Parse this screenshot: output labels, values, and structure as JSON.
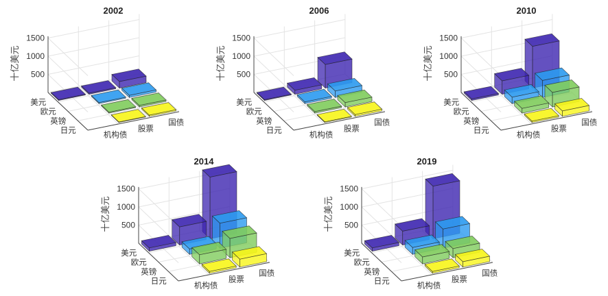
{
  "chart_data": [
    {
      "type": "bar3d",
      "title": "2002",
      "zlabel": "十亿美元",
      "zticks": [
        500,
        1000,
        1500
      ],
      "rows": [
        "美元",
        "欧元",
        "英镑",
        "日元"
      ],
      "columns": [
        "机构债",
        "股票",
        "国债"
      ],
      "values": [
        [
          20,
          30,
          180
        ],
        [
          0,
          30,
          60
        ],
        [
          0,
          25,
          40
        ],
        [
          0,
          15,
          35
        ]
      ]
    },
    {
      "type": "bar3d",
      "title": "2006",
      "zlabel": "十亿美元",
      "zticks": [
        500,
        1000,
        1500
      ],
      "rows": [
        "美元",
        "欧元",
        "英镑",
        "日元"
      ],
      "columns": [
        "机构债",
        "股票",
        "国债"
      ],
      "values": [
        [
          20,
          110,
          650
        ],
        [
          0,
          50,
          180
        ],
        [
          0,
          40,
          120
        ],
        [
          0,
          20,
          50
        ]
      ]
    },
    {
      "type": "bar3d",
      "title": "2010",
      "zlabel": "十亿美元",
      "zticks": [
        500,
        1000,
        1500
      ],
      "rows": [
        "美元",
        "欧元",
        "英镑",
        "日元"
      ],
      "columns": [
        "机构债",
        "股票",
        "国债"
      ],
      "values": [
        [
          40,
          370,
          1150
        ],
        [
          0,
          180,
          470
        ],
        [
          0,
          130,
          400
        ],
        [
          0,
          40,
          150
        ]
      ]
    },
    {
      "type": "bar3d",
      "title": "2014",
      "zlabel": "十亿美元",
      "zticks": [
        500,
        1000,
        1500
      ],
      "rows": [
        "美元",
        "欧元",
        "英镑",
        "日元"
      ],
      "columns": [
        "机构债",
        "股票",
        "国债"
      ],
      "values": [
        [
          90,
          500,
          1700
        ],
        [
          0,
          150,
          690
        ],
        [
          0,
          250,
          530
        ],
        [
          0,
          50,
          220
        ]
      ]
    },
    {
      "type": "bar3d",
      "title": "2019",
      "zlabel": "十亿美元",
      "zticks": [
        500,
        1000,
        1500
      ],
      "rows": [
        "美元",
        "欧元",
        "英镑",
        "日元"
      ],
      "columns": [
        "机构债",
        "股票",
        "国债"
      ],
      "values": [
        [
          90,
          380,
          1450
        ],
        [
          0,
          190,
          530
        ],
        [
          0,
          190,
          250
        ],
        [
          0,
          50,
          150
        ]
      ]
    }
  ],
  "row_colors": [
    "#3d26b0",
    "#2b9af0",
    "#7fcc5c",
    "#f7f51a"
  ]
}
